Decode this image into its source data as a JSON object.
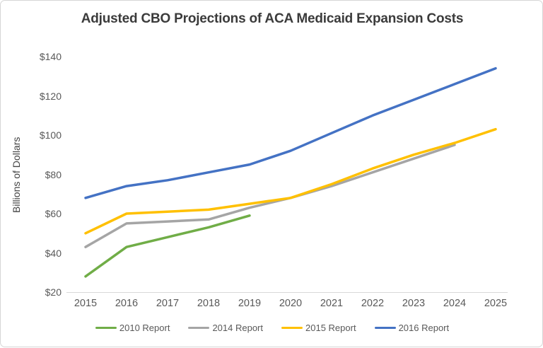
{
  "chart_data": {
    "type": "line",
    "title": "Adjusted CBO Projections of ACA Medicaid Expansion Costs",
    "xlabel": "",
    "ylabel": "Billions of Dollars",
    "ylim": [
      20,
      140
    ],
    "y_ticks": [
      20,
      40,
      60,
      80,
      100,
      120,
      140
    ],
    "y_tick_labels": [
      "$20",
      "$40",
      "$60",
      "$80",
      "$100",
      "$120",
      "$140"
    ],
    "categories": [
      "2015",
      "2016",
      "2017",
      "2018",
      "2019",
      "2020",
      "2021",
      "2022",
      "2023",
      "2024",
      "2025"
    ],
    "grid": false,
    "legend_position": "bottom",
    "series": [
      {
        "name": "2010 Report",
        "color": "#70AD47",
        "values": [
          28,
          43,
          48,
          53,
          59,
          null,
          null,
          null,
          null,
          null,
          null
        ]
      },
      {
        "name": "2014 Report",
        "color": "#A5A5A5",
        "values": [
          43,
          55,
          56,
          57,
          63,
          68,
          74,
          81,
          88,
          95,
          null
        ]
      },
      {
        "name": "2015 Report",
        "color": "#FFC000",
        "values": [
          50,
          60,
          61,
          62,
          65,
          68,
          75,
          83,
          90,
          96,
          103
        ]
      },
      {
        "name": "2016 Report",
        "color": "#4472C4",
        "values": [
          68,
          74,
          77,
          81,
          85,
          92,
          101,
          110,
          118,
          126,
          134
        ]
      }
    ]
  }
}
